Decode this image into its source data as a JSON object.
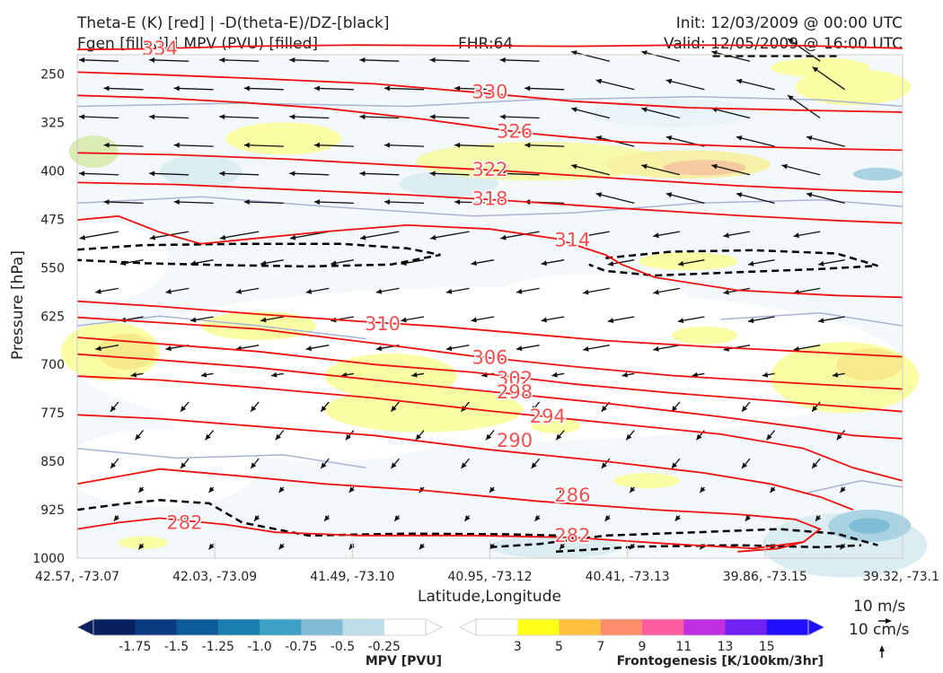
{
  "header": {
    "title_line1": "Theta-E (K) [red] | -D(theta-E)/DZ-[black]",
    "title_line2": "Fgen [filled] | MPV (PVU) [filled]",
    "fhr": "FHR:64",
    "init": "Init: 12/03/2009 @ 00:00 UTC",
    "valid": "Valid: 12/05/2009 @ 16:00 UTC"
  },
  "chart_data": {
    "type": "cross-section",
    "title": "Theta-E (K) [red] | -D(theta-E)/DZ-[black] | Fgen [filled] | MPV (PVU) [filled]",
    "xlabel": "Latitude,Longitude",
    "ylabel": "Pressure [hPa]",
    "x_ticks": [
      "42.57, -73.07",
      "42.03, -73.09",
      "41.49, -73.10",
      "40.95, -73.12",
      "40.41, -73.13",
      "39.86, -73.15",
      "39.32, -73.1"
    ],
    "y_ticks": [
      250,
      325,
      400,
      475,
      550,
      625,
      700,
      775,
      850,
      925,
      1000
    ],
    "ylim": [
      1000,
      200
    ],
    "theta_e_contours": [
      {
        "value": 334,
        "label": "334",
        "points": [
          [
            0,
            212
          ],
          [
            0.08,
            211
          ],
          [
            0.2,
            207
          ],
          [
            0.34,
            205
          ],
          [
            0.46,
            206
          ],
          [
            0.6,
            207
          ],
          [
            0.74,
            205
          ],
          [
            0.88,
            206
          ],
          [
            1,
            210
          ]
        ]
      },
      {
        "value": 330,
        "label": "330",
        "points": [
          [
            0,
            247
          ],
          [
            0.1,
            251
          ],
          [
            0.22,
            257
          ],
          [
            0.36,
            265
          ],
          [
            0.48,
            278
          ],
          [
            0.6,
            292
          ],
          [
            0.74,
            302
          ],
          [
            0.88,
            306
          ],
          [
            1,
            309
          ]
        ]
      },
      {
        "value": 326,
        "label": "326",
        "points": [
          [
            0,
            283
          ],
          [
            0.1,
            287
          ],
          [
            0.2,
            294
          ],
          [
            0.3,
            303
          ],
          [
            0.42,
            320
          ],
          [
            0.54,
            341
          ],
          [
            0.66,
            355
          ],
          [
            0.8,
            362
          ],
          [
            0.92,
            366
          ],
          [
            1,
            368
          ]
        ]
      },
      {
        "value": 322,
        "label": "322",
        "points": [
          [
            0,
            372
          ],
          [
            0.12,
            375
          ],
          [
            0.26,
            382
          ],
          [
            0.4,
            392
          ],
          [
            0.52,
            400
          ],
          [
            0.66,
            412
          ],
          [
            0.8,
            423
          ],
          [
            0.92,
            430
          ],
          [
            1,
            433
          ]
        ]
      },
      {
        "value": 318,
        "label": "318",
        "points": [
          [
            0,
            418
          ],
          [
            0.12,
            421
          ],
          [
            0.26,
            429
          ],
          [
            0.4,
            437
          ],
          [
            0.52,
            446
          ],
          [
            0.66,
            458
          ],
          [
            0.8,
            469
          ],
          [
            0.92,
            477
          ],
          [
            1,
            481
          ]
        ]
      },
      {
        "value": 314,
        "label": "314",
        "points": [
          [
            0,
            476
          ],
          [
            0.05,
            470
          ],
          [
            0.1,
            495
          ],
          [
            0.15,
            513
          ],
          [
            0.22,
            504
          ],
          [
            0.3,
            494
          ],
          [
            0.4,
            484
          ],
          [
            0.5,
            490
          ],
          [
            0.58,
            505
          ],
          [
            0.64,
            530
          ],
          [
            0.66,
            545
          ],
          [
            0.7,
            565
          ],
          [
            0.8,
            585
          ],
          [
            0.92,
            593
          ],
          [
            1,
            596
          ]
        ]
      },
      {
        "value": 310,
        "label": "310",
        "points": [
          [
            0,
            602
          ],
          [
            0.1,
            610
          ],
          [
            0.22,
            622
          ],
          [
            0.34,
            633
          ],
          [
            0.44,
            641
          ],
          [
            0.54,
            652
          ],
          [
            0.64,
            663
          ],
          [
            0.76,
            672
          ],
          [
            0.88,
            680
          ],
          [
            1,
            688
          ]
        ]
      },
      {
        "value": 306,
        "label": "306",
        "points": [
          [
            0,
            627
          ],
          [
            0.1,
            635
          ],
          [
            0.22,
            645
          ],
          [
            0.36,
            667
          ],
          [
            0.48,
            687
          ],
          [
            0.6,
            703
          ],
          [
            0.72,
            717
          ],
          [
            0.86,
            728
          ],
          [
            1,
            738
          ]
        ]
      },
      {
        "value": 302,
        "label": "302",
        "points": [
          [
            0,
            658
          ],
          [
            0.1,
            668
          ],
          [
            0.22,
            680
          ],
          [
            0.36,
            700
          ],
          [
            0.48,
            712
          ],
          [
            0.6,
            730
          ],
          [
            0.72,
            744
          ],
          [
            0.86,
            758
          ],
          [
            1,
            773
          ]
        ]
      },
      {
        "value": 298,
        "label": "298",
        "points": [
          [
            0,
            684
          ],
          [
            0.1,
            693
          ],
          [
            0.22,
            705
          ],
          [
            0.36,
            724
          ],
          [
            0.5,
            742
          ],
          [
            0.64,
            760
          ],
          [
            0.78,
            781
          ],
          [
            0.88,
            798
          ],
          [
            0.94,
            810
          ],
          [
            1,
            815
          ]
        ]
      },
      {
        "value": 294,
        "label": "294",
        "points": [
          [
            0,
            718
          ],
          [
            0.1,
            724
          ],
          [
            0.22,
            736
          ],
          [
            0.36,
            752
          ],
          [
            0.5,
            772
          ],
          [
            0.64,
            790
          ],
          [
            0.78,
            808
          ],
          [
            0.88,
            830
          ],
          [
            0.94,
            860
          ],
          [
            1,
            880
          ]
        ]
      },
      {
        "value": 290,
        "label": "290",
        "points": [
          [
            0,
            778
          ],
          [
            0.1,
            784
          ],
          [
            0.22,
            796
          ],
          [
            0.36,
            810
          ],
          [
            0.5,
            832
          ],
          [
            0.64,
            850
          ],
          [
            0.76,
            868
          ],
          [
            0.84,
            885
          ],
          [
            0.9,
            905
          ],
          [
            0.94,
            925
          ]
        ]
      },
      {
        "value": 286,
        "label": "286",
        "points": [
          [
            0,
            885
          ],
          [
            0.1,
            862
          ],
          [
            0.2,
            873
          ],
          [
            0.3,
            885
          ],
          [
            0.42,
            895
          ],
          [
            0.56,
            912
          ],
          [
            0.7,
            925
          ],
          [
            0.8,
            932
          ],
          [
            0.87,
            940
          ],
          [
            0.9,
            955
          ],
          [
            0.88,
            975
          ],
          [
            0.85,
            985
          ],
          [
            0.8,
            990
          ]
        ]
      },
      {
        "value": 282,
        "label": "282",
        "points": [
          [
            0,
            955
          ],
          [
            0.05,
            945
          ],
          [
            0.1,
            938
          ],
          [
            0.18,
            948
          ],
          [
            0.24,
            960
          ],
          [
            0.34,
            965
          ],
          [
            0.48,
            965
          ],
          [
            0.6,
            968
          ],
          [
            0.72,
            978
          ],
          [
            0.82,
            985
          ],
          [
            0.88,
            975
          ]
        ]
      }
    ],
    "dashed_contours": [
      [
        [
          0,
          522
        ],
        [
          0.08,
          515
        ],
        [
          0.2,
          513
        ],
        [
          0.32,
          513
        ],
        [
          0.4,
          520
        ],
        [
          0.44,
          530
        ],
        [
          0.38,
          545
        ],
        [
          0.28,
          548
        ],
        [
          0.18,
          546
        ],
        [
          0.08,
          543
        ],
        [
          0,
          538
        ]
      ],
      [
        [
          0.64,
          535
        ],
        [
          0.72,
          525
        ],
        [
          0.82,
          523
        ],
        [
          0.92,
          528
        ],
        [
          0.97,
          547
        ],
        [
          0.9,
          552
        ],
        [
          0.8,
          557
        ],
        [
          0.7,
          562
        ],
        [
          0.64,
          555
        ],
        [
          0.62,
          545
        ]
      ],
      [
        [
          0,
          925
        ],
        [
          0.06,
          915
        ],
        [
          0.1,
          910
        ],
        [
          0.16,
          915
        ],
        [
          0.2,
          945
        ],
        [
          0.28,
          965
        ],
        [
          0.4,
          962
        ],
        [
          0.52,
          963
        ],
        [
          0.58,
          965
        ]
      ],
      [
        [
          0.5,
          983
        ],
        [
          0.56,
          978
        ],
        [
          0.64,
          965
        ],
        [
          0.75,
          960
        ],
        [
          0.85,
          955
        ],
        [
          0.92,
          962
        ],
        [
          0.97,
          980
        ]
      ],
      [
        [
          0.58,
          990
        ],
        [
          0.68,
          982
        ],
        [
          0.8,
          980
        ],
        [
          0.9,
          983
        ],
        [
          0.95,
          980
        ]
      ],
      [
        [
          0.77,
          222
        ],
        [
          0.92,
          222
        ]
      ]
    ],
    "fgen_colorbar": {
      "label": "Frontogenesis [K/100km/3hr]",
      "ticks": [
        "3",
        "5",
        "7",
        "9",
        "11",
        "13",
        "15"
      ],
      "colors": [
        "#ffffff",
        "#ffff1a",
        "#ffc040",
        "#ff8c6a",
        "#ff5ca0",
        "#c030e0",
        "#7020f0",
        "#2010ff"
      ]
    },
    "mpv_colorbar": {
      "label": "MPV [PVU]",
      "ticks": [
        "-1.75",
        "-1.5",
        "-1.25",
        "-1.0",
        "-0.75",
        "-0.5",
        "-0.25"
      ],
      "colors": [
        "#08205e",
        "#0a3a80",
        "#0d5b98",
        "#1a7fae",
        "#3ea0c4",
        "#7fbdd6",
        "#bddde8",
        "#ffffff"
      ]
    },
    "wind_reference": {
      "horizontal": "10 m/s",
      "vertical": "10 cm/s"
    }
  }
}
